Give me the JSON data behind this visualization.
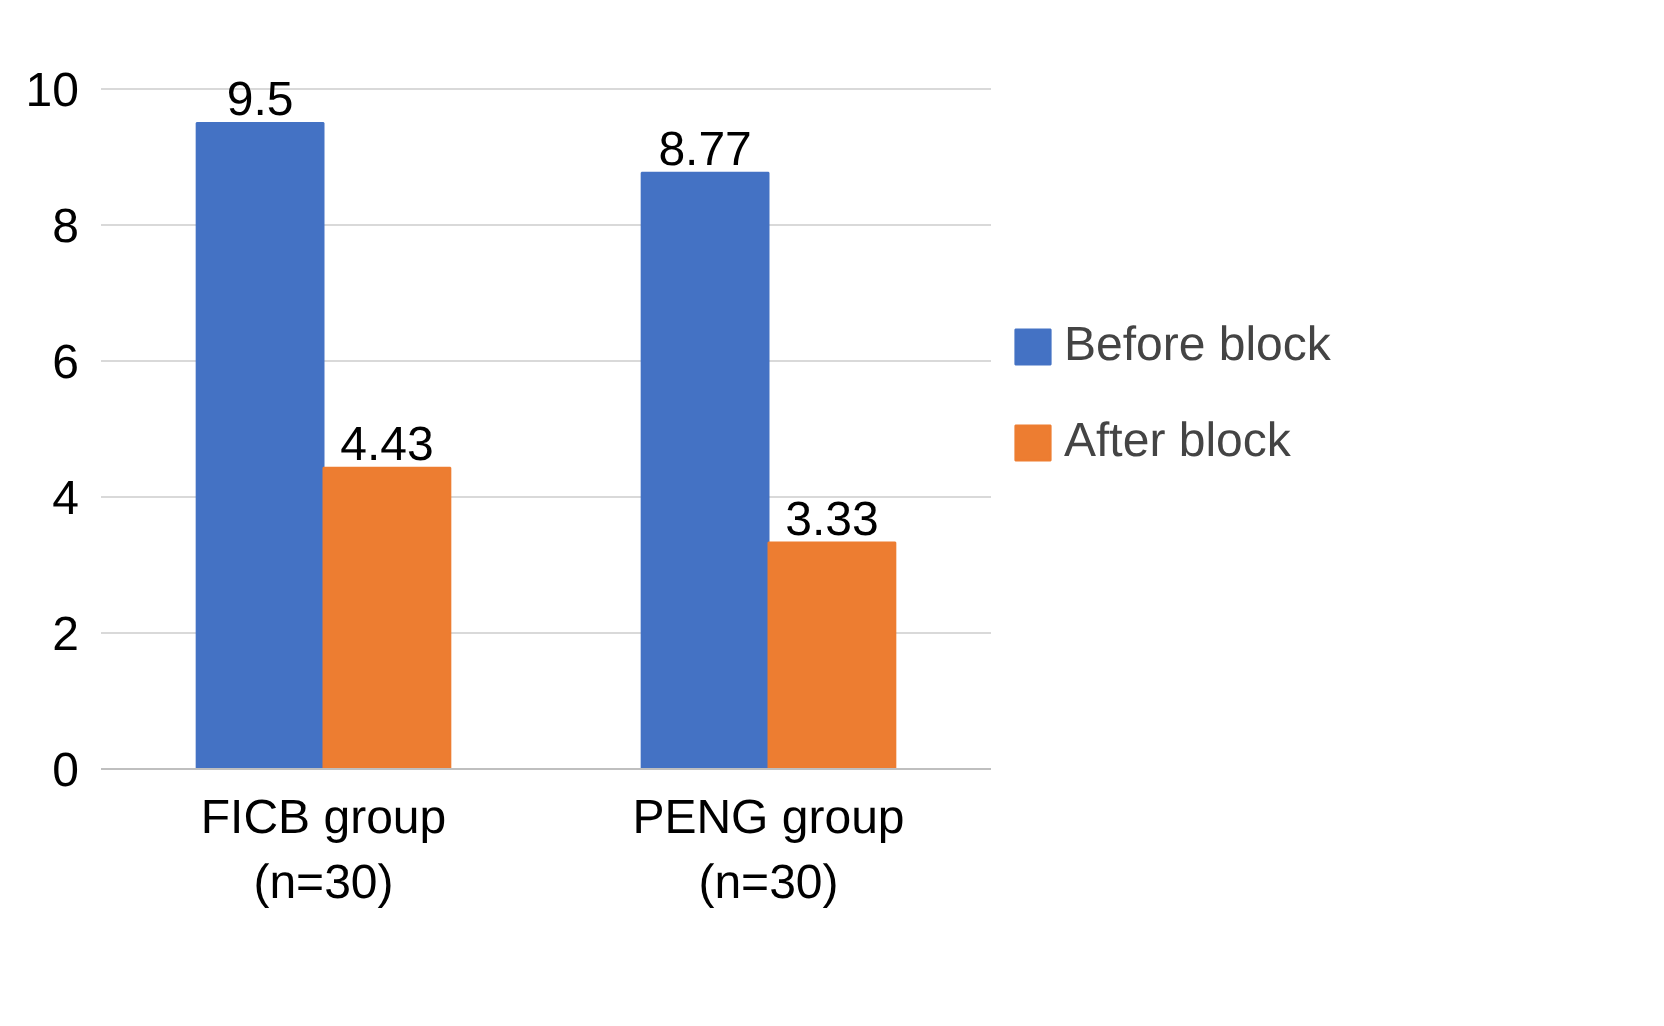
{
  "chart_data": {
    "type": "bar",
    "categories": [
      "FICB group\n(n=30)",
      "PENG group\n(n=30)"
    ],
    "series": [
      {
        "name": "Before block",
        "color": "#4472c4",
        "values": [
          9.5,
          8.77
        ]
      },
      {
        "name": "After block",
        "color": "#ed7d31",
        "values": [
          4.43,
          3.33
        ]
      }
    ],
    "ylim": [
      0,
      10
    ],
    "yticks": [
      0,
      2,
      4,
      6,
      8,
      10
    ],
    "grid": "y",
    "legend": "right",
    "data_labels": true
  }
}
